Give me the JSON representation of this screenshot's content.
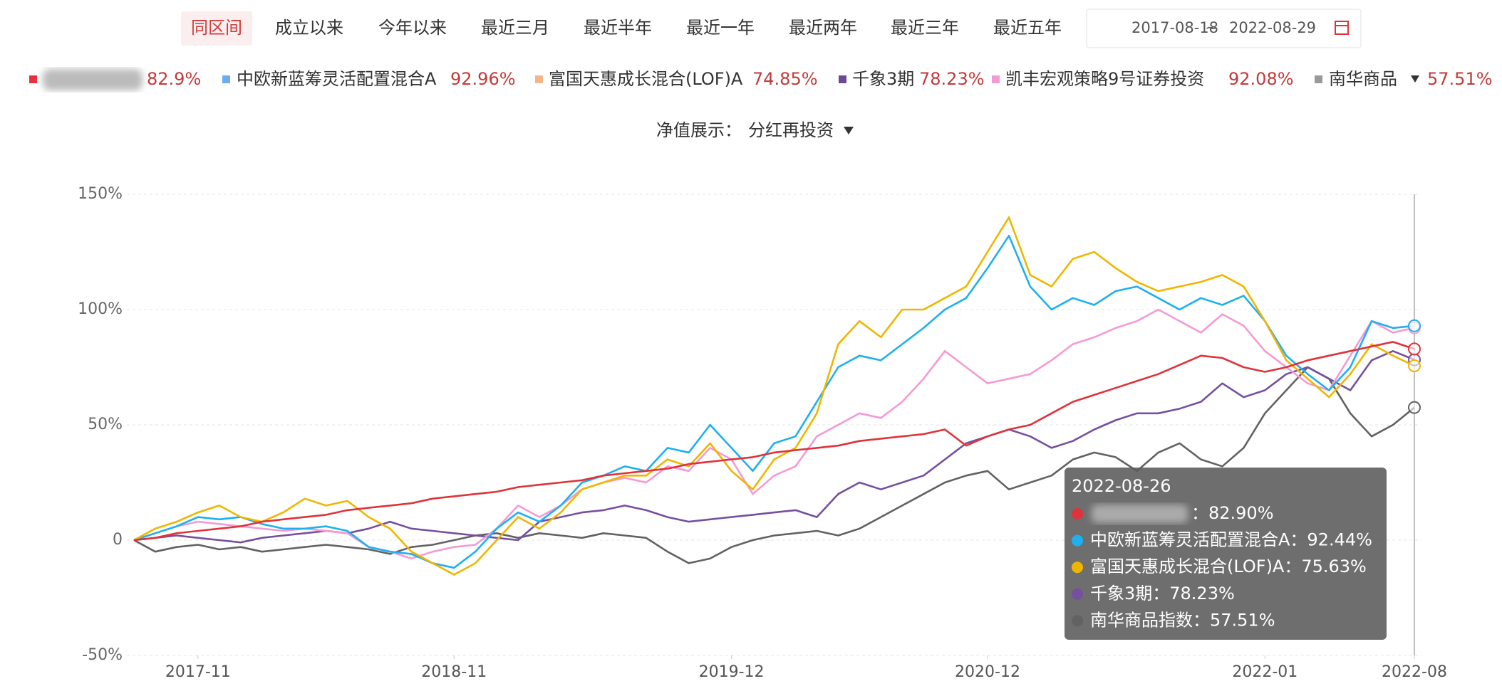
{
  "range_buttons": [
    "同区间",
    "成立以来",
    "今年以来",
    "最近三月",
    "最近半年",
    "最近一年",
    "最近两年",
    "最近三年",
    "最近五年"
  ],
  "active_range": "同区间",
  "date_range": {
    "start": "2017-08-18",
    "separator": "~",
    "end": "2022-08-29"
  },
  "nav_display": {
    "label": "净值展示：",
    "value": "分红再投资"
  },
  "chart_data": {
    "type": "line",
    "x": [
      "2017-08",
      "2017-09",
      "2017-10",
      "2017-11",
      "2017-12",
      "2018-01",
      "2018-02",
      "2018-03",
      "2018-04",
      "2018-05",
      "2018-06",
      "2018-07",
      "2018-08",
      "2018-09",
      "2018-10",
      "2018-11",
      "2018-12",
      "2019-01",
      "2019-02",
      "2019-03",
      "2019-04",
      "2019-05",
      "2019-06",
      "2019-07",
      "2019-08",
      "2019-09",
      "2019-10",
      "2019-11",
      "2019-12",
      "2020-01",
      "2020-02",
      "2020-03",
      "2020-04",
      "2020-05",
      "2020-06",
      "2020-07",
      "2020-08",
      "2020-09",
      "2020-10",
      "2020-11",
      "2020-12",
      "2021-01",
      "2021-02",
      "2021-03",
      "2021-04",
      "2021-05",
      "2021-06",
      "2021-07",
      "2021-08",
      "2021-09",
      "2021-10",
      "2021-11",
      "2021-12",
      "2022-01",
      "2022-02",
      "2022-03",
      "2022-04",
      "2022-05",
      "2022-06",
      "2022-07",
      "2022-08"
    ],
    "xticks": [
      "2017-11",
      "2018-11",
      "2019-12",
      "2020-12",
      "2022-01",
      "2022-08"
    ],
    "ylim": [
      -50,
      150
    ],
    "yticks": [
      {
        "value": -50,
        "label": "-50%"
      },
      0,
      {
        "value": 50,
        "label": "50%"
      },
      {
        "value": 100,
        "label": "100%"
      },
      {
        "value": 150,
        "label": "150%"
      }
    ],
    "grid": true,
    "series": [
      {
        "color": "#e0323a",
        "legend_color": "#e8313a",
        "return": "82.9%",
        "values": [
          0,
          1,
          3,
          4,
          5,
          6,
          8,
          9,
          10,
          11,
          13,
          14,
          15,
          16,
          18,
          19,
          20,
          21,
          23,
          24,
          25,
          26,
          28,
          29,
          30,
          31,
          33,
          34,
          35,
          36,
          38,
          39,
          40,
          41,
          43,
          44,
          45,
          46,
          48,
          41,
          45,
          48,
          50,
          55,
          60,
          63,
          66,
          69,
          72,
          76,
          80,
          79,
          75,
          73,
          75,
          78,
          80,
          82,
          84,
          86,
          82.9
        ]
      },
      {
        "name": "中欧新蓝筹灵活配置混合A",
        "color": "#1eb0ef",
        "legend_color": "#6aaef0",
        "return": "92.96%",
        "values": [
          0,
          3,
          6,
          10,
          9,
          10,
          7,
          5,
          5,
          6,
          4,
          -3,
          -5,
          -6,
          -10,
          -12,
          -5,
          5,
          12,
          8,
          15,
          25,
          28,
          32,
          30,
          40,
          38,
          50,
          40,
          30,
          42,
          45,
          60,
          75,
          80,
          78,
          85,
          92,
          100,
          105,
          118,
          132,
          110,
          100,
          105,
          102,
          108,
          110,
          105,
          100,
          105,
          102,
          106,
          95,
          80,
          72,
          65,
          75,
          95,
          92,
          92.96
        ]
      },
      {
        "name": "富国天惠成长混合(LOF)A",
        "color": "#efb600",
        "legend_color": "#f5b58a",
        "return": "74.85%",
        "values": [
          0,
          5,
          8,
          12,
          15,
          10,
          8,
          12,
          18,
          15,
          17,
          10,
          5,
          -5,
          -10,
          -15,
          -10,
          0,
          10,
          5,
          12,
          22,
          25,
          28,
          28,
          35,
          32,
          42,
          30,
          22,
          35,
          40,
          55,
          85,
          95,
          88,
          100,
          100,
          105,
          110,
          125,
          140,
          115,
          110,
          122,
          125,
          118,
          112,
          108,
          110,
          112,
          115,
          110,
          95,
          78,
          70,
          62,
          72,
          85,
          80,
          75.63
        ]
      },
      {
        "name": "千象3期",
        "color": "#7650a0",
        "legend_color": "#6d4a8f",
        "return": "78.23%",
        "values": [
          0,
          1,
          2,
          1,
          0,
          -1,
          1,
          2,
          3,
          4,
          3,
          5,
          8,
          5,
          4,
          3,
          2,
          1,
          0,
          8,
          10,
          12,
          13,
          15,
          13,
          10,
          8,
          9,
          10,
          11,
          12,
          13,
          10,
          20,
          25,
          22,
          25,
          28,
          35,
          42,
          45,
          48,
          45,
          40,
          43,
          48,
          52,
          55,
          55,
          57,
          60,
          68,
          62,
          65,
          72,
          75,
          70,
          65,
          78,
          82,
          78.23
        ]
      },
      {
        "name": "凯丰宏观策略9号证券投资",
        "color": "#f59ad4",
        "legend_color": "#f29ad6",
        "return": "92.08%",
        "values": [
          0,
          3,
          6,
          8,
          7,
          6,
          5,
          4,
          5,
          4,
          3,
          -3,
          -5,
          -8,
          -5,
          -3,
          -2,
          5,
          15,
          10,
          15,
          22,
          25,
          27,
          25,
          32,
          30,
          40,
          35,
          20,
          28,
          32,
          45,
          50,
          55,
          53,
          60,
          70,
          82,
          75,
          68,
          70,
          72,
          78,
          85,
          88,
          92,
          95,
          100,
          95,
          90,
          98,
          93,
          82,
          75,
          68,
          65,
          80,
          95,
          90,
          92.08
        ]
      },
      {
        "name": "南华商品",
        "color": "#626262",
        "legend_color": "#999999",
        "return": "57.51%",
        "values": [
          0,
          -5,
          -3,
          -2,
          -4,
          -3,
          -5,
          -4,
          -3,
          -2,
          -3,
          -4,
          -6,
          -3,
          -2,
          0,
          2,
          3,
          1,
          3,
          2,
          1,
          3,
          2,
          1,
          -5,
          -10,
          -8,
          -3,
          0,
          2,
          3,
          4,
          2,
          5,
          10,
          15,
          20,
          25,
          28,
          30,
          22,
          25,
          28,
          35,
          38,
          36,
          30,
          38,
          42,
          35,
          32,
          40,
          55,
          65,
          75,
          70,
          55,
          45,
          50,
          57.51
        ]
      }
    ],
    "tooltip": {
      "date": "2022-08-26",
      "rows": [
        {
          "text": "：82.90%",
          "color": "#e0323a"
        },
        {
          "text": "中欧新蓝筹灵活配置混合A：92.44%",
          "color": "#1eb0ef"
        },
        {
          "text": "富国天惠成长混合(LOF)A：75.63%",
          "color": "#efb600"
        },
        {
          "text": "千象3期：78.23%",
          "color": "#7650a0"
        },
        {
          "text": "南华商品指数：57.51%",
          "color": "#626262"
        }
      ]
    }
  }
}
